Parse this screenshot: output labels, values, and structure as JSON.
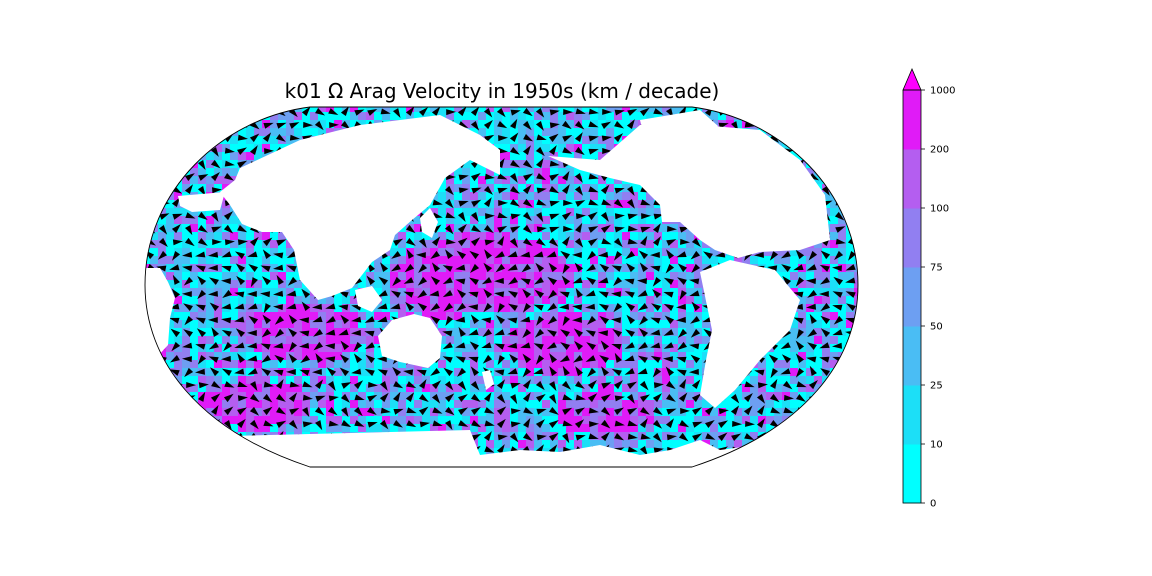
{
  "title": "k01 Ω Arag Velocity in 1950s (km / decade)",
  "map": {
    "projection": "Robinson",
    "central_longitude": 150,
    "ocean_colors_by_bin": [
      "#00ffff",
      "#1cdff7",
      "#4abdf4",
      "#6d9ff2",
      "#917ff1",
      "#b45ef0",
      "#e01bf7"
    ],
    "land_color": "#ffffff",
    "arrow_color": "#000000",
    "outline_color": "#000000"
  },
  "colorbar": {
    "tick_labels": [
      "0",
      "10",
      "25",
      "50",
      "75",
      "100",
      "200",
      "1000"
    ],
    "boundaries": [
      0,
      10,
      25,
      50,
      75,
      100,
      200,
      1000
    ],
    "colors": [
      "#00ffff",
      "#1cdff7",
      "#4abdf4",
      "#6d9ff2",
      "#917ff1",
      "#b45ef0",
      "#e01bf7"
    ],
    "extend": "max",
    "extend_color": "#ff00ff"
  }
}
